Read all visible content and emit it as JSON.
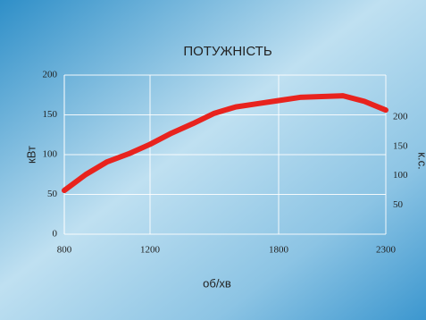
{
  "chart_data": {
    "type": "line",
    "title": "ПОТУЖНІСТЬ",
    "x_label": "об/хв",
    "y_label": "кВт",
    "y2_label": "к.с.",
    "x": [
      800,
      900,
      1000,
      1100,
      1200,
      1300,
      1400,
      1500,
      1600,
      1700,
      1800,
      1900,
      2000,
      2100,
      2200,
      2300
    ],
    "series": [
      {
        "color": "#e8231e",
        "values": [
          55,
          75,
          91,
          101,
          113,
          127,
          139,
          152,
          160,
          164,
          168,
          172,
          173,
          174,
          167,
          156
        ]
      }
    ],
    "xlim": [
      800,
      2300
    ],
    "xticks": [
      800,
      1200,
      1800,
      2300
    ],
    "ylim": [
      0,
      200
    ],
    "yticks": [
      0,
      50,
      100,
      150,
      200
    ],
    "y2lim": [
      0,
      272
    ],
    "y2ticks": [
      50,
      100,
      150,
      200
    ],
    "grid": true
  }
}
